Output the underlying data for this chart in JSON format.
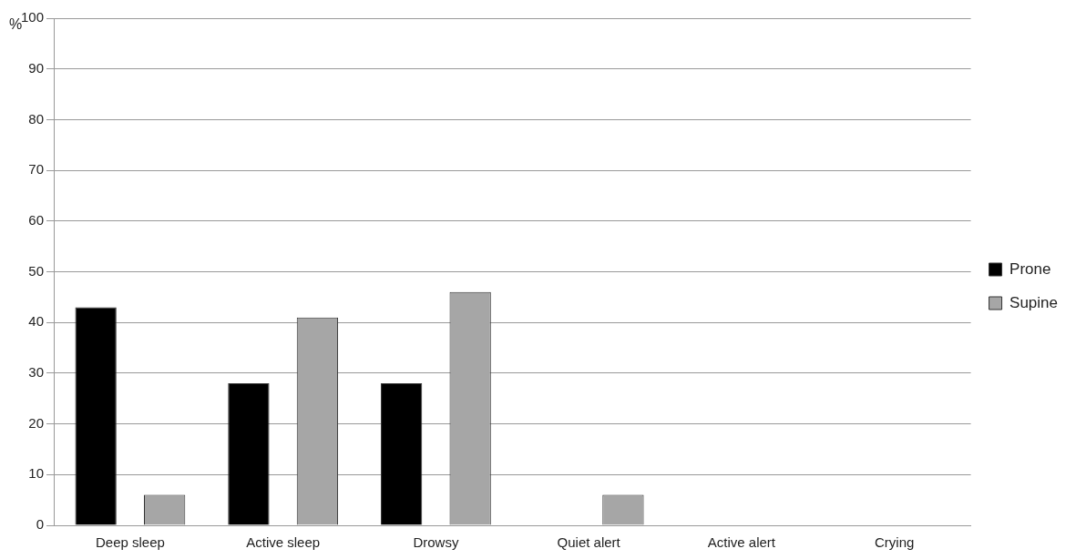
{
  "chart_data": {
    "type": "bar",
    "ylabel": "%",
    "categories": [
      "Deep sleep",
      "Active sleep",
      "Drowsy",
      "Quiet alert",
      "Active alert",
      "Crying"
    ],
    "series": [
      {
        "name": "Prone",
        "color": "#000000",
        "values": [
          43,
          28,
          28,
          0,
          0,
          0
        ]
      },
      {
        "name": "Supine",
        "color": "#a6a6a6",
        "values": [
          6,
          41,
          46,
          6,
          0,
          0
        ]
      }
    ],
    "ylim": [
      0,
      100
    ],
    "yticks": [
      0,
      10,
      20,
      30,
      40,
      50,
      60,
      70,
      80,
      90,
      100
    ],
    "grid": "y",
    "legend": "right"
  }
}
